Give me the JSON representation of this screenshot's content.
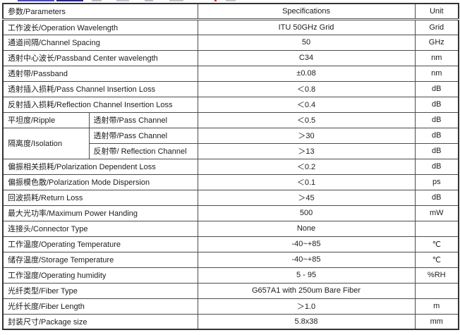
{
  "colors": {
    "table_border": "#4d4d4d",
    "outer_border": "#333333",
    "text": "#1c1c1c",
    "remnant_blue": "#4a4ab8",
    "remnant_navy": "#26267e",
    "remnant_grey": "#b9bac7",
    "remnant_red": "#c23a3a"
  },
  "table": {
    "header": {
      "param": "参数/Parameters",
      "spec": "Specifications",
      "unit": "Unit"
    },
    "rows": [
      {
        "param": "工作波长/Operation Wavelength",
        "spec": "ITU 50GHz Grid",
        "unit": "Grid"
      },
      {
        "param": "通道间隔/Channel Spacing",
        "spec": "50",
        "unit": "GHz"
      },
      {
        "param": "透射中心波长/Passband Center wavelength",
        "spec": "C34",
        "unit": "nm"
      },
      {
        "param": "透射带/Passband",
        "spec": "±0.08",
        "unit": "nm"
      },
      {
        "param": "透射插入损耗/Pass Channel Insertion Loss",
        "spec": "＜0.8",
        "unit": "dB"
      },
      {
        "param": "反射插入损耗/Reflection Channel Insertion Loss",
        "spec": "＜0.4",
        "unit": "dB"
      },
      {
        "group": "平坦度/Ripple",
        "group_rows": 1,
        "sub": "透射带/Pass Channel",
        "spec": "＜0.5",
        "unit": "dB"
      },
      {
        "group": "隔离度/Isolation",
        "group_rows": 2,
        "sub": "透射带/Pass Channel",
        "spec": "＞30",
        "unit": "dB"
      },
      {
        "sub": "反射带/ Reflection Channel",
        "spec": "＞13",
        "unit": "dB"
      },
      {
        "param": "偏振相关损耗/Polarization Dependent Loss",
        "spec": "＜0.2",
        "unit": "dB"
      },
      {
        "param": "偏振模色散/Polarization Mode Dispersion",
        "spec": "＜0.1",
        "unit": "ps"
      },
      {
        "param": "回波损耗/Return Loss",
        "spec": "＞45",
        "unit": "dB"
      },
      {
        "param": "最大光功率/Maximum Power Handing",
        "spec": "500",
        "unit": "mW"
      },
      {
        "param": "连接头/Connector Type",
        "spec": "None",
        "unit": ""
      },
      {
        "param": "工作温度/Operating Temperature",
        "spec": "-40~+85",
        "unit": "℃"
      },
      {
        "param": "储存温度/Storage Temperature",
        "spec": "-40~+85",
        "unit": "℃"
      },
      {
        "param": "工作湿度/Operating humidity",
        "spec": "5 - 95",
        "unit": "%RH"
      },
      {
        "param": "光纤类型/Fiber Type",
        "spec": "G657A1 with 250um Bare Fiber",
        "unit": ""
      },
      {
        "param": "光纤长度/Fiber Length",
        "spec": "＞1.0",
        "unit": "m"
      },
      {
        "param": "封装尺寸/Package size",
        "spec": "5.8x38",
        "unit": "mm"
      }
    ]
  }
}
